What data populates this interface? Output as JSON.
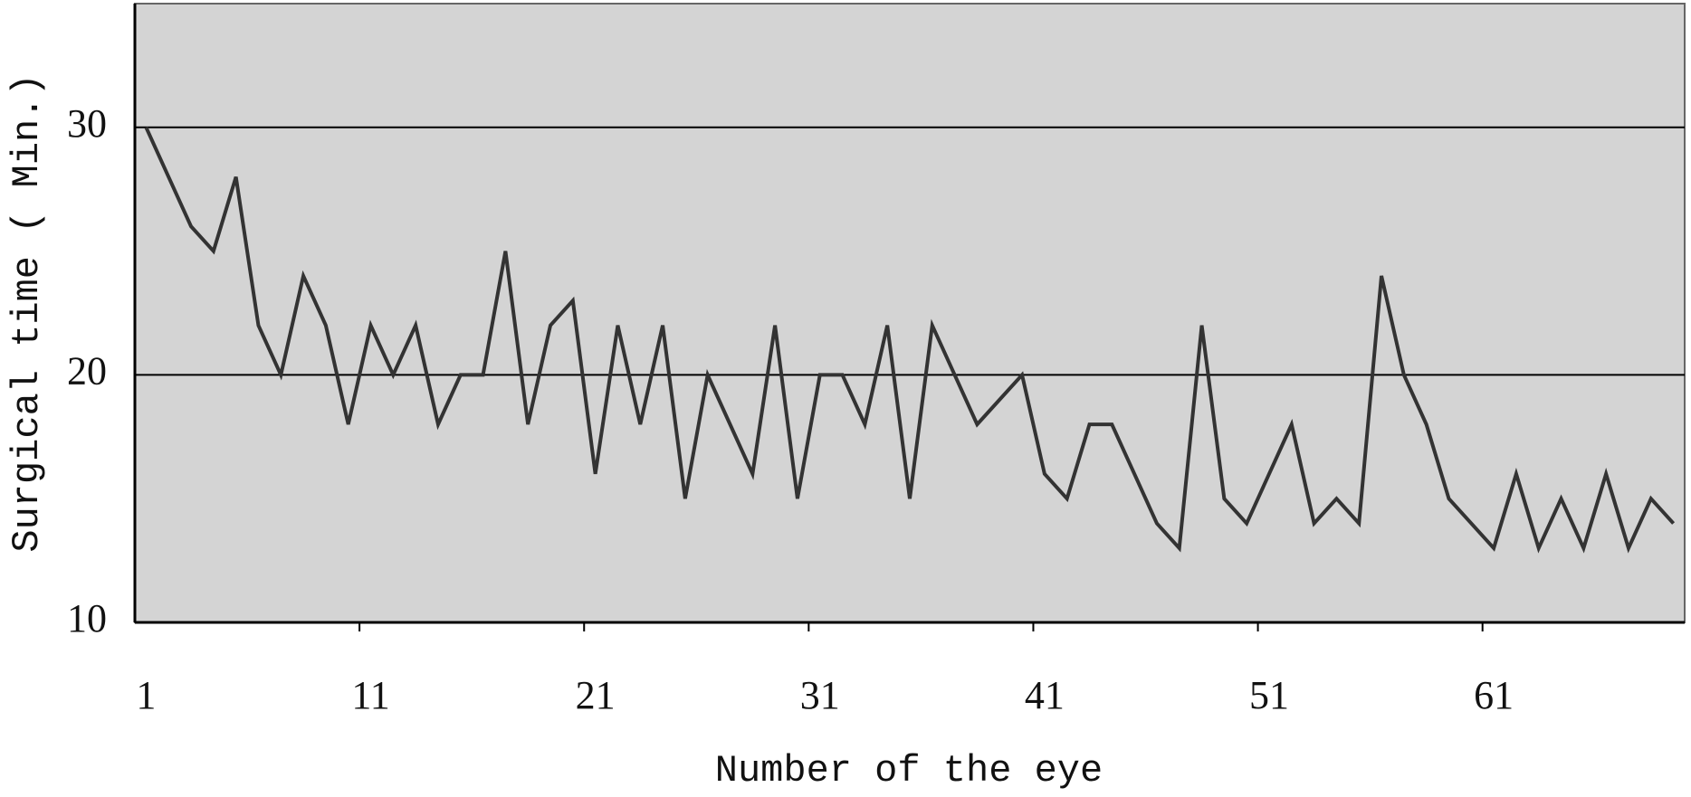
{
  "chart_data": {
    "type": "line",
    "x_label": "Number of the eye",
    "y_label": "Surgical time ( Min.)",
    "categories": [
      1,
      null,
      null,
      null,
      null,
      null,
      null,
      null,
      null,
      null,
      11,
      null,
      null,
      null,
      null,
      null,
      null,
      null,
      null,
      null,
      21,
      null,
      null,
      null,
      null,
      null,
      null,
      null,
      null,
      null,
      31,
      null,
      null,
      null,
      null,
      null,
      null,
      null,
      null,
      null,
      41,
      null,
      null,
      null,
      null,
      null,
      null,
      null,
      null,
      null,
      51,
      null,
      null,
      null,
      null,
      null,
      null,
      null,
      null,
      null,
      61,
      null,
      null,
      null,
      null,
      null,
      null,
      null,
      null
    ],
    "series": [
      {
        "color": "#333333",
        "values": [
          30,
          28,
          26,
          25,
          28,
          22,
          20,
          24,
          22,
          18,
          22,
          20,
          22,
          18,
          20,
          20,
          25,
          18,
          22,
          23,
          16,
          22,
          18,
          22,
          15,
          20,
          18,
          16,
          22,
          15,
          20,
          20,
          18,
          22,
          15,
          22,
          20,
          18,
          19,
          20,
          16,
          15,
          18,
          18,
          16,
          14,
          13,
          22,
          15,
          14,
          16,
          18,
          14,
          15,
          14,
          24,
          20,
          18,
          15,
          14,
          13,
          16,
          13,
          15,
          13,
          16,
          13,
          15,
          14
        ]
      }
    ],
    "ylim": [
      10,
      35
    ],
    "yticks": [
      10,
      20,
      30
    ],
    "grid": true
  }
}
